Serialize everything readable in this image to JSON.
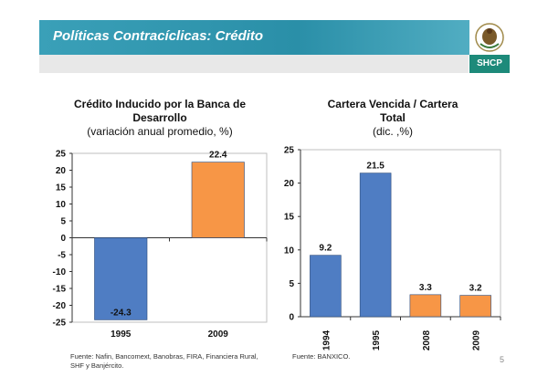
{
  "header": {
    "title": "Políticas Contracíclicas: Crédito",
    "brand": "SHCP"
  },
  "colors": {
    "blue": "#4f7dc3",
    "orange": "#f79646",
    "header_teal": "#3aa0b8",
    "brand_green": "#1d8a7a"
  },
  "chart_data": [
    {
      "type": "bar",
      "title": "Crédito Inducido por la Banca de Desarrollo",
      "subtitle": "(variación anual promedio, %)",
      "categories": [
        "1995",
        "2009"
      ],
      "values": [
        -24.3,
        22.4
      ],
      "value_labels": [
        "-24.3",
        "22.4"
      ],
      "bar_colors": [
        "#4f7dc3",
        "#f79646"
      ],
      "ylim": [
        -25,
        25
      ],
      "yticks": [
        "25",
        "20",
        "15",
        "10",
        "5",
        "0",
        "-5",
        "-10",
        "-15",
        "-20",
        "-25"
      ],
      "grid": false
    },
    {
      "type": "bar",
      "title": "Cartera Vencida / Cartera Total",
      "subtitle": "(dic. ,%)",
      "categories": [
        "1994",
        "1995",
        "2008",
        "2009"
      ],
      "values": [
        9.2,
        21.5,
        3.3,
        3.2
      ],
      "value_labels": [
        "9.2",
        "21.5",
        "3.3",
        "3.2"
      ],
      "bar_colors": [
        "#4f7dc3",
        "#4f7dc3",
        "#f79646",
        "#f79646"
      ],
      "ylim": [
        0,
        25
      ],
      "yticks": [
        "25",
        "20",
        "15",
        "10",
        "5",
        "0"
      ],
      "grid": false
    }
  ],
  "footer": {
    "source_left": "Fuente: Nafin, Bancomext, Banobras, FIRA, Financiera Rural, SHF y Banjército.",
    "source_right": "Fuente: BANXICO.",
    "page_number": "5"
  }
}
